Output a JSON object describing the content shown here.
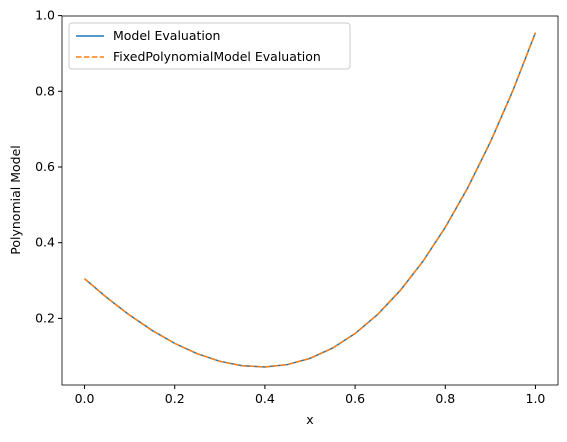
{
  "chart_data": {
    "type": "line",
    "xlabel": "x",
    "ylabel": "Polynomial Model",
    "x": [
      0,
      0.05,
      0.1,
      0.15,
      0.2,
      0.25,
      0.3,
      0.35,
      0.4,
      0.45,
      0.5,
      0.55,
      0.6,
      0.65,
      0.7,
      0.75,
      0.8,
      0.85,
      0.9,
      0.95,
      1
    ],
    "series": [
      {
        "name": "Model Evaluation",
        "color": "#1f77b4",
        "linestyle": "solid",
        "values": [
          0.305,
          0.2543,
          0.2085,
          0.1682,
          0.134,
          0.1066,
          0.0866,
          0.0748,
          0.0717,
          0.078,
          0.0944,
          0.1215,
          0.1599,
          0.2104,
          0.2735,
          0.35,
          0.4404,
          0.5455,
          0.6659,
          0.8021,
          0.955
        ]
      },
      {
        "name": "FixedPolynomialModel Evaluation",
        "color": "#ff7f0e",
        "linestyle": "dashed",
        "values": [
          0.305,
          0.2543,
          0.2085,
          0.1682,
          0.134,
          0.1066,
          0.0866,
          0.0748,
          0.0717,
          0.078,
          0.0944,
          0.1215,
          0.1599,
          0.2104,
          0.2735,
          0.35,
          0.4404,
          0.5455,
          0.6659,
          0.8021,
          0.955
        ]
      }
    ],
    "xlim": [
      -0.05,
      1.05
    ],
    "ylim": [
      0.024,
      0.999
    ],
    "xticks": [
      {
        "value": 0,
        "label": "0.0"
      },
      {
        "value": 0.2,
        "label": "0.2"
      },
      {
        "value": 0.4,
        "label": "0.4"
      },
      {
        "value": 0.6,
        "label": "0.6"
      },
      {
        "value": 0.8,
        "label": "0.8"
      },
      {
        "value": 1,
        "label": "1.0"
      }
    ],
    "yticks": [
      0.2,
      0.4,
      0.6,
      0.8,
      {
        "value": 1,
        "label": "1.0"
      }
    ],
    "legend": "upper left",
    "grid": false
  }
}
